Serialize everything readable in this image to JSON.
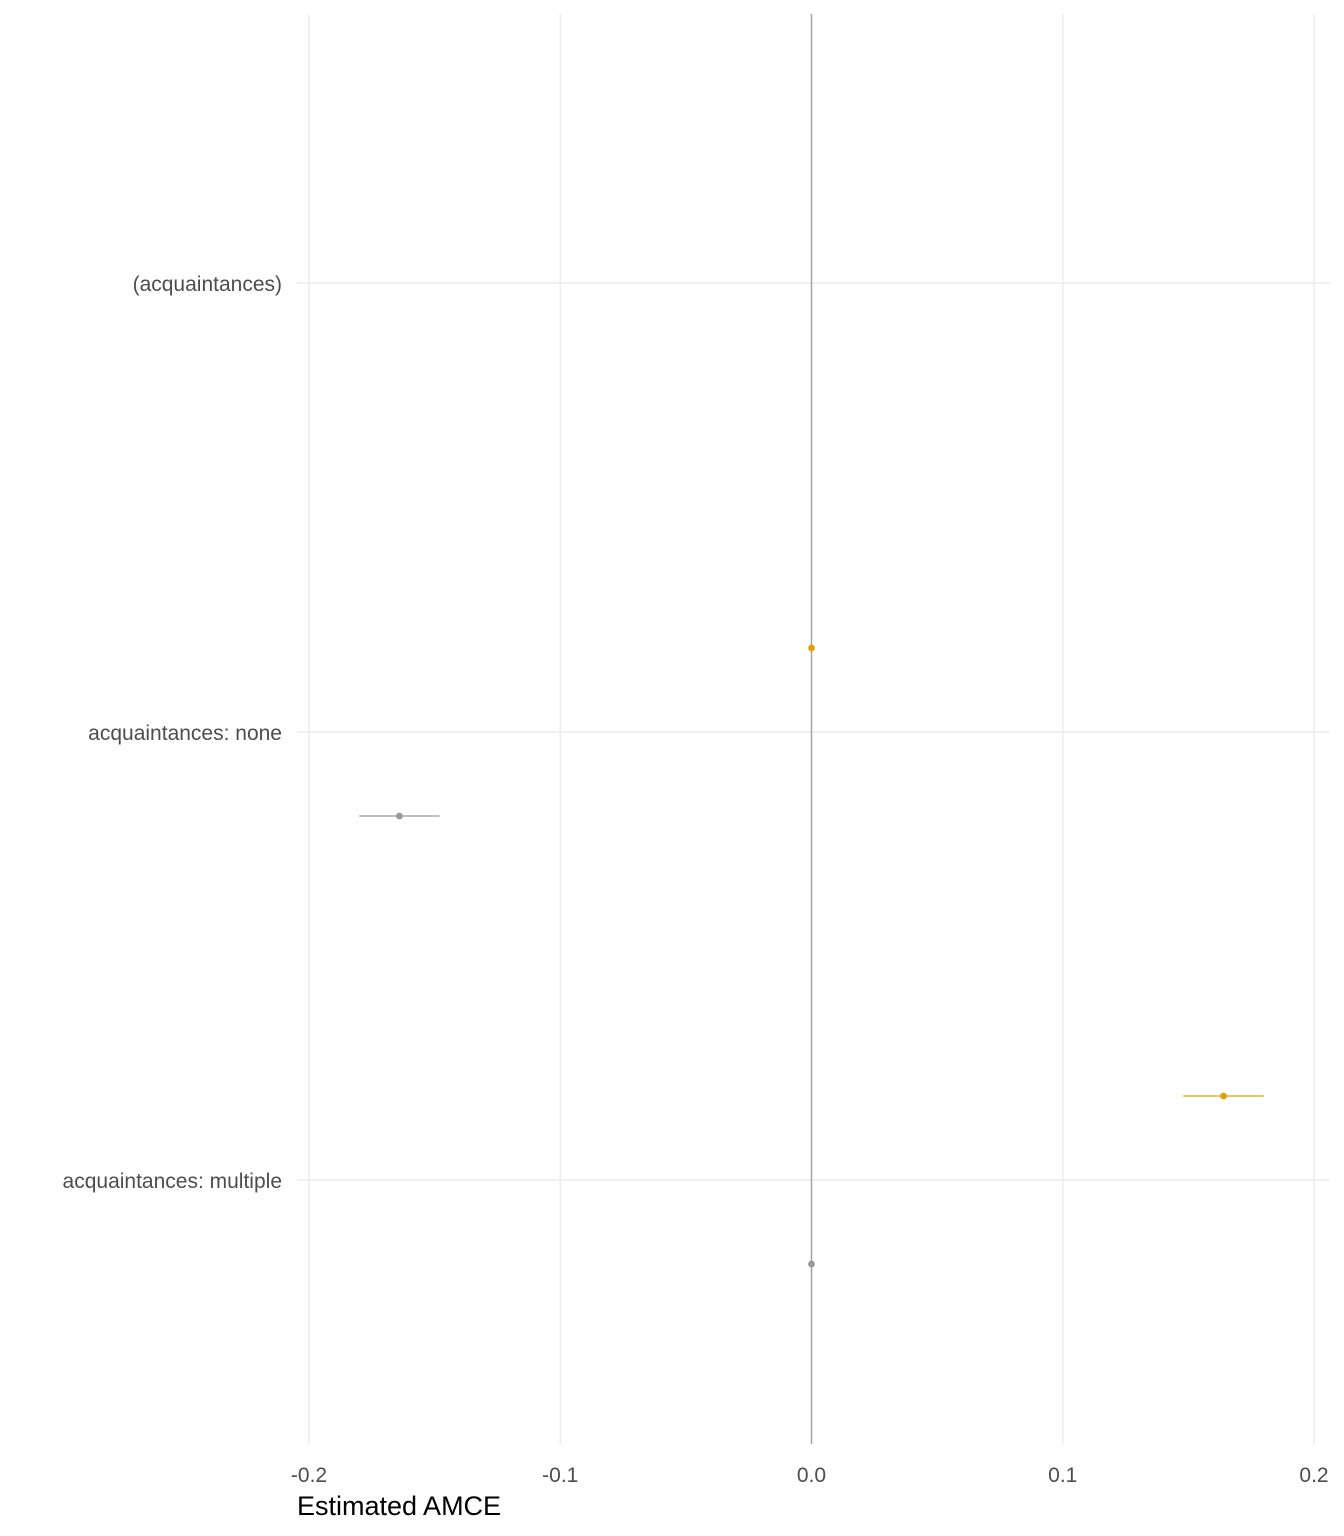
{
  "chart_data": {
    "type": "scatter",
    "title": "",
    "xlabel": "Estimated AMCE",
    "ylabel": "",
    "xlim": [
      -0.2,
      0.2
    ],
    "x_ticks": [
      -0.2,
      -0.1,
      0.0,
      0.1,
      0.2
    ],
    "x_tick_labels": [
      "-0.2",
      "-0.1",
      "0.0",
      "0.1",
      "0.2"
    ],
    "categories": [
      "(acquaintances)",
      "acquaintances: none",
      "acquaintances: multiple"
    ],
    "reference_line": 0,
    "grid": true,
    "legend": "none",
    "series": [
      {
        "color": "#E69F00",
        "points": [
          {
            "category": "acquaintances: none",
            "estimate": 0.0,
            "ci_low": 0.0,
            "ci_high": 0.0
          },
          {
            "category": "acquaintances: multiple",
            "estimate": 0.164,
            "ci_low": 0.148,
            "ci_high": 0.18
          }
        ]
      },
      {
        "color": "#999999",
        "points": [
          {
            "category": "acquaintances: none",
            "estimate": -0.164,
            "ci_low": -0.18,
            "ci_high": -0.148
          },
          {
            "category": "acquaintances: multiple",
            "estimate": 0.0,
            "ci_low": 0.0,
            "ci_high": 0.0
          }
        ]
      }
    ]
  }
}
